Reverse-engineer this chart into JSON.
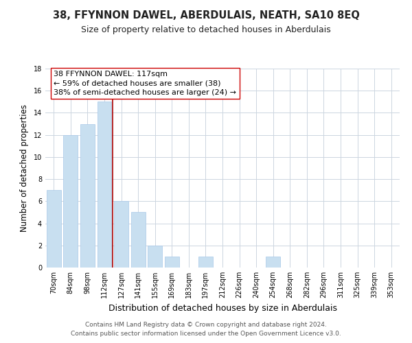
{
  "title": "38, FFYNNON DAWEL, ABERDULAIS, NEATH, SA10 8EQ",
  "subtitle": "Size of property relative to detached houses in Aberdulais",
  "xlabel": "Distribution of detached houses by size in Aberdulais",
  "ylabel": "Number of detached properties",
  "bar_labels": [
    "70sqm",
    "84sqm",
    "98sqm",
    "112sqm",
    "127sqm",
    "141sqm",
    "155sqm",
    "169sqm",
    "183sqm",
    "197sqm",
    "212sqm",
    "226sqm",
    "240sqm",
    "254sqm",
    "268sqm",
    "282sqm",
    "296sqm",
    "311sqm",
    "325sqm",
    "339sqm",
    "353sqm"
  ],
  "bar_values": [
    7,
    12,
    13,
    15,
    6,
    5,
    2,
    1,
    0,
    1,
    0,
    0,
    0,
    1,
    0,
    0,
    0,
    0,
    0,
    0,
    0
  ],
  "bar_color": "#c8dff0",
  "bar_edge_color": "#a8c8e8",
  "highlight_line_color": "#aa0000",
  "annotation_line1": "38 FFYNNON DAWEL: 117sqm",
  "annotation_line2": "← 59% of detached houses are smaller (38)",
  "annotation_line3": "38% of semi-detached houses are larger (24) →",
  "annotation_box_color": "#ffffff",
  "annotation_box_edge": "#cc0000",
  "ylim": [
    0,
    18
  ],
  "yticks": [
    0,
    2,
    4,
    6,
    8,
    10,
    12,
    14,
    16,
    18
  ],
  "footer_line1": "Contains HM Land Registry data © Crown copyright and database right 2024.",
  "footer_line2": "Contains public sector information licensed under the Open Government Licence v3.0.",
  "background_color": "#ffffff",
  "grid_color": "#ccd5e0",
  "title_fontsize": 10.5,
  "subtitle_fontsize": 9,
  "xlabel_fontsize": 9,
  "ylabel_fontsize": 8.5,
  "tick_fontsize": 7,
  "annotation_fontsize": 8,
  "footer_fontsize": 6.5
}
